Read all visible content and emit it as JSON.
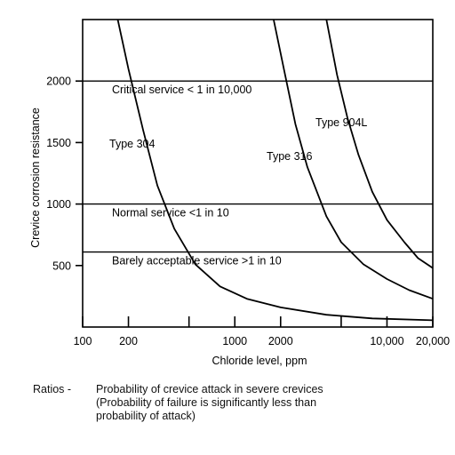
{
  "chart_data": {
    "type": "line",
    "title": "",
    "xlabel": "Chloride level, ppm",
    "ylabel": "Crevice corrosion resistance",
    "x_scale": "log",
    "xlim": [
      100,
      20000
    ],
    "ylim": [
      0,
      2500
    ],
    "x_ticks": [
      {
        "value": 100,
        "label": "100"
      },
      {
        "value": 200,
        "label": "200"
      },
      {
        "value": 500,
        "label": ""
      },
      {
        "value": 1000,
        "label": "1000"
      },
      {
        "value": 2000,
        "label": "2000"
      },
      {
        "value": 5000,
        "label": ""
      },
      {
        "value": 10000,
        "label": "10,000"
      },
      {
        "value": 20000,
        "label": "20,000"
      }
    ],
    "y_ticks": [
      {
        "value": 500,
        "label": "500"
      },
      {
        "value": 1000,
        "label": "1000"
      },
      {
        "value": 1500,
        "label": "1500"
      },
      {
        "value": 2000,
        "label": "2000"
      }
    ],
    "reference_lines": [
      {
        "y": 2000,
        "label": "Critical service < 1 in 10,000"
      },
      {
        "y": 1000,
        "label": "Normal service  <1 in 10"
      },
      {
        "y": 610,
        "label": "Barely acceptable service  >1 in 10"
      }
    ],
    "series": [
      {
        "name": "Type 304",
        "points": [
          [
            170,
            2500
          ],
          [
            200,
            2100
          ],
          [
            250,
            1600
          ],
          [
            310,
            1150
          ],
          [
            400,
            800
          ],
          [
            550,
            510
          ],
          [
            800,
            330
          ],
          [
            1200,
            230
          ],
          [
            2000,
            160
          ],
          [
            4000,
            100
          ],
          [
            8000,
            70
          ],
          [
            20000,
            55
          ]
        ]
      },
      {
        "name": "Type 316",
        "points": [
          [
            1800,
            2500
          ],
          [
            2100,
            2100
          ],
          [
            2500,
            1650
          ],
          [
            3000,
            1300
          ],
          [
            4000,
            900
          ],
          [
            5000,
            690
          ],
          [
            7000,
            510
          ],
          [
            10000,
            390
          ],
          [
            14000,
            300
          ],
          [
            20000,
            230
          ]
        ]
      },
      {
        "name": "Type 904L",
        "points": [
          [
            4000,
            2500
          ],
          [
            4700,
            2050
          ],
          [
            5500,
            1700
          ],
          [
            6500,
            1400
          ],
          [
            8000,
            1100
          ],
          [
            10000,
            870
          ],
          [
            13000,
            690
          ],
          [
            16000,
            560
          ],
          [
            20000,
            480
          ]
        ]
      }
    ]
  },
  "notes": {
    "ratios_label": "Ratios -",
    "line1": "Probability of crevice attack in severe crevices",
    "line2": "(Probability of failure is significantly less than",
    "line3": "probability of attack)"
  }
}
